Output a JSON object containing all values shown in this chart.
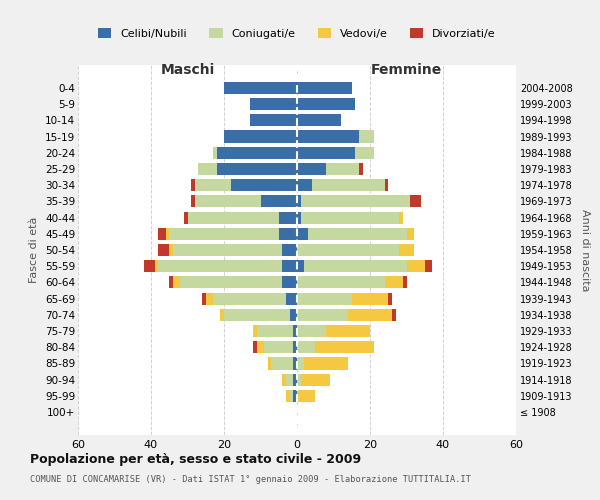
{
  "age_groups": [
    "100+",
    "95-99",
    "90-94",
    "85-89",
    "80-84",
    "75-79",
    "70-74",
    "65-69",
    "60-64",
    "55-59",
    "50-54",
    "45-49",
    "40-44",
    "35-39",
    "30-34",
    "25-29",
    "20-24",
    "15-19",
    "10-14",
    "5-9",
    "0-4"
  ],
  "anni_nascita": [
    "≤ 1908",
    "1909-1913",
    "1914-1918",
    "1919-1923",
    "1924-1928",
    "1929-1933",
    "1934-1938",
    "1939-1943",
    "1944-1948",
    "1949-1953",
    "1954-1958",
    "1959-1963",
    "1964-1968",
    "1969-1973",
    "1974-1978",
    "1979-1983",
    "1984-1988",
    "1989-1993",
    "1994-1998",
    "1999-2003",
    "2004-2008"
  ],
  "maschi": {
    "celibi": [
      0,
      1,
      1,
      1,
      1,
      1,
      2,
      3,
      4,
      4,
      4,
      5,
      5,
      10,
      18,
      22,
      22,
      20,
      13,
      13,
      20
    ],
    "coniugati": [
      0,
      1,
      2,
      6,
      8,
      10,
      18,
      20,
      28,
      34,
      30,
      30,
      25,
      18,
      10,
      5,
      1,
      0,
      0,
      0,
      0
    ],
    "vedovi": [
      0,
      1,
      1,
      1,
      2,
      1,
      1,
      2,
      2,
      1,
      1,
      1,
      0,
      0,
      0,
      0,
      0,
      0,
      0,
      0,
      0
    ],
    "divorziati": [
      0,
      0,
      0,
      0,
      1,
      0,
      0,
      1,
      1,
      3,
      3,
      2,
      1,
      1,
      1,
      0,
      0,
      0,
      0,
      0,
      0
    ]
  },
  "femmine": {
    "nubili": [
      0,
      0,
      0,
      0,
      0,
      0,
      0,
      0,
      0,
      2,
      0,
      3,
      1,
      1,
      4,
      8,
      16,
      17,
      12,
      16,
      15
    ],
    "coniugate": [
      0,
      0,
      1,
      2,
      5,
      8,
      14,
      15,
      24,
      28,
      28,
      27,
      27,
      30,
      20,
      9,
      5,
      4,
      0,
      0,
      0
    ],
    "vedove": [
      0,
      5,
      8,
      12,
      16,
      12,
      12,
      10,
      5,
      5,
      4,
      2,
      1,
      0,
      0,
      0,
      0,
      0,
      0,
      0,
      0
    ],
    "divorziate": [
      0,
      0,
      0,
      0,
      0,
      0,
      1,
      1,
      1,
      2,
      0,
      0,
      0,
      3,
      1,
      1,
      0,
      0,
      0,
      0,
      0
    ]
  },
  "colors": {
    "celibi": "#3a6ea8",
    "coniugati": "#c5d8a0",
    "vedovi": "#f5c842",
    "divorziati": "#c0392b"
  },
  "xlim": 60,
  "title": "Popolazione per età, sesso e stato civile - 2009",
  "subtitle": "COMUNE DI CONCAMARISE (VR) - Dati ISTAT 1° gennaio 2009 - Elaborazione TUTTITALIA.IT",
  "header_left": "Maschi",
  "header_right": "Femmine",
  "ylabel_left": "Fasce di età",
  "ylabel_right": "Anni di nascita",
  "bg_color": "#f0f0f0",
  "plot_bg_color": "#ffffff",
  "legend_labels": [
    "Celibi/Nubili",
    "Coniugati/e",
    "Vedovi/e",
    "Divorziati/e"
  ]
}
